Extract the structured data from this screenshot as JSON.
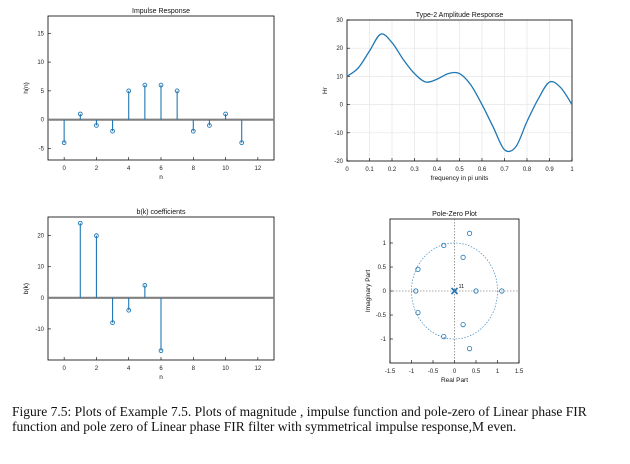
{
  "figure": {
    "caption": "Figure 7.5: Plots of Example 7.5. Plots of magnitude , impulse function and pole-zero of Linear phase FIR function and pole zero of Linear phase FIR filter with symmetrical impulse response,M even."
  },
  "colors": {
    "accent": "#1f77b4",
    "axis": "#000000",
    "grid": "#e6e6e6",
    "baseline": "#808080"
  },
  "chart_data": [
    {
      "type": "stem",
      "title": "Impulse Response",
      "xlabel": "n",
      "ylabel": "h(n)",
      "xlim": [
        -1,
        13
      ],
      "ylim": [
        -7,
        18
      ],
      "xticks": [
        0,
        2,
        4,
        6,
        8,
        10,
        12
      ],
      "yticks": [
        -5,
        0,
        5,
        10,
        15
      ],
      "grid": false,
      "x": [
        0,
        1,
        2,
        3,
        4,
        5,
        6,
        7,
        8,
        9,
        10,
        11
      ],
      "values": [
        -4,
        1,
        -1,
        -2,
        5,
        6,
        6,
        5,
        -2,
        -1,
        1,
        -4
      ]
    },
    {
      "type": "line",
      "title": "Type-2 Amplitude Response",
      "xlabel": "frequency in pi units",
      "ylabel": "Hr",
      "xlim": [
        0,
        1
      ],
      "ylim": [
        -20,
        30
      ],
      "xticks": [
        0,
        0.1,
        0.2,
        0.3,
        0.4,
        0.5,
        0.6,
        0.7,
        0.8,
        0.9,
        1
      ],
      "yticks": [
        -20,
        -10,
        0,
        10,
        20,
        30
      ],
      "grid": true,
      "x": [
        0,
        0.05,
        0.1,
        0.15,
        0.2,
        0.25,
        0.3,
        0.35,
        0.4,
        0.45,
        0.5,
        0.55,
        0.6,
        0.65,
        0.7,
        0.75,
        0.8,
        0.85,
        0.9,
        0.95,
        1
      ],
      "values": [
        10,
        13,
        19,
        25,
        22,
        16,
        11,
        8,
        9,
        11,
        11,
        7,
        0,
        -8,
        -16,
        -15,
        -6,
        2,
        8,
        6,
        0
      ]
    },
    {
      "type": "stem",
      "title": "b(k) coefficients",
      "xlabel": "n",
      "ylabel": "b(k)",
      "xlim": [
        -1,
        13
      ],
      "ylim": [
        -20,
        26
      ],
      "xticks": [
        0,
        2,
        4,
        6,
        8,
        10,
        12
      ],
      "yticks": [
        -10,
        0,
        10,
        20
      ],
      "grid": false,
      "x": [
        1,
        2,
        3,
        4,
        5,
        6
      ],
      "values": [
        24,
        20,
        -8,
        -4,
        4,
        -17
      ]
    },
    {
      "type": "scatter",
      "title": "Pole-Zero Plot",
      "xlabel": "Real Part",
      "ylabel": "Imaginary Part",
      "xlim": [
        -1.5,
        1.5
      ],
      "ylim": [
        -1.5,
        1.5
      ],
      "xticks": [
        -1.5,
        -1,
        -0.5,
        0,
        0.5,
        1,
        1.5
      ],
      "yticks": [
        -1,
        -0.5,
        0,
        0.5,
        1
      ],
      "pole_order_label": "11",
      "poles": [
        {
          "re": 0,
          "im": 0
        }
      ],
      "zeros": [
        {
          "re": 0.35,
          "im": 1.2
        },
        {
          "re": -0.25,
          "im": 0.95
        },
        {
          "re": 0.2,
          "im": 0.7
        },
        {
          "re": -0.85,
          "im": 0.45
        },
        {
          "re": -0.9,
          "im": 0
        },
        {
          "re": -0.85,
          "im": -0.45
        },
        {
          "re": 0.5,
          "im": 0
        },
        {
          "re": 1.1,
          "im": 0
        },
        {
          "re": 0.2,
          "im": -0.7
        },
        {
          "re": -0.25,
          "im": -0.95
        },
        {
          "re": 0.35,
          "im": -1.2
        }
      ]
    }
  ]
}
